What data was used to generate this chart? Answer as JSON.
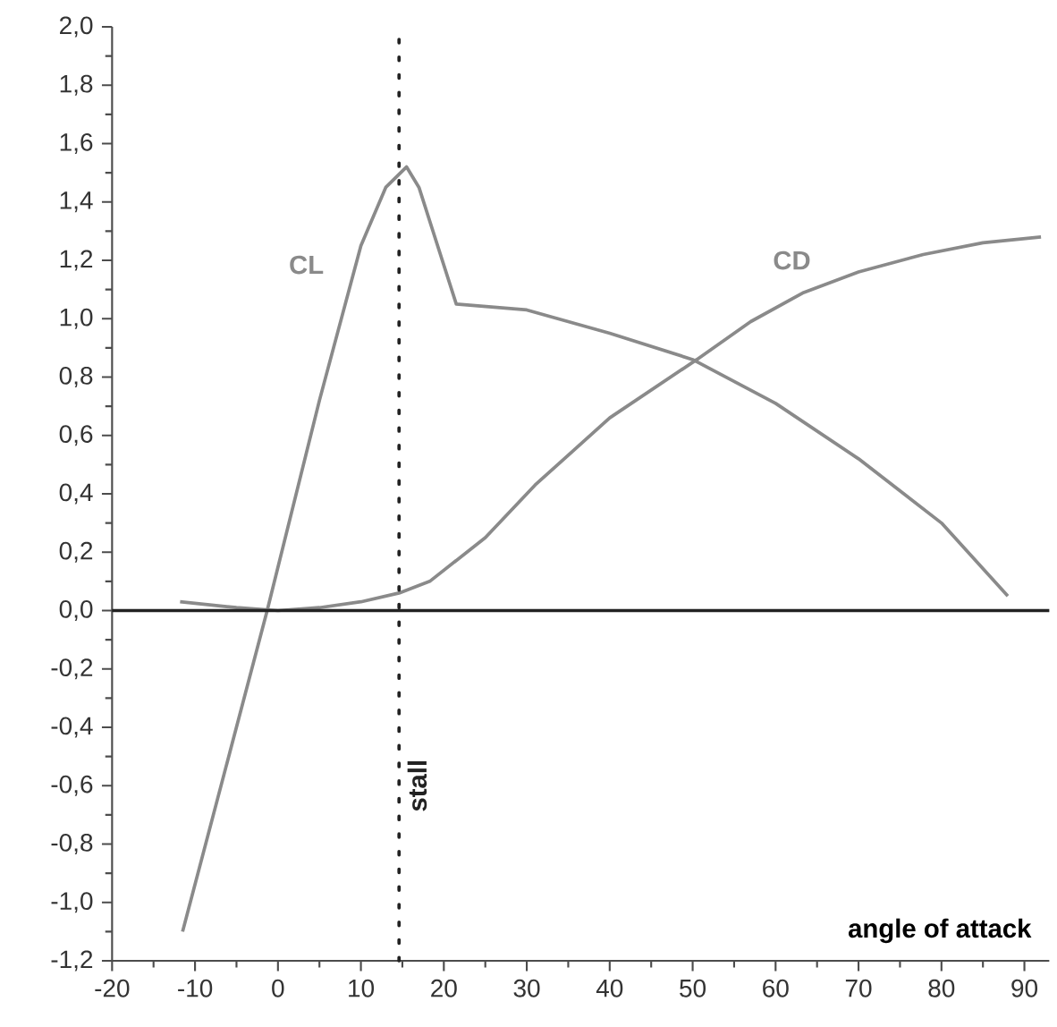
{
  "chart_data": {
    "type": "line",
    "xlabel": "angle of attack",
    "xlim": [
      -20,
      93
    ],
    "xticks": [
      -20,
      -10,
      0,
      10,
      20,
      30,
      40,
      50,
      60,
      70,
      80,
      90
    ],
    "ylim": [
      -1.2,
      2.0
    ],
    "yticks": [
      {
        "value": -1.2,
        "label": "-1,2"
      },
      {
        "value": -1.0,
        "label": "-1,0"
      },
      {
        "value": -0.8,
        "label": "-0,8"
      },
      {
        "value": -0.6,
        "label": "-0,6"
      },
      {
        "value": -0.4,
        "label": "-0,4"
      },
      {
        "value": -0.2,
        "label": "-0,2"
      },
      {
        "value": 0,
        "label": "0,0"
      },
      {
        "value": 0.2,
        "label": "0,2"
      },
      {
        "value": 0.4,
        "label": "0,4"
      },
      {
        "value": 0.6,
        "label": "0,6"
      },
      {
        "value": 0.8,
        "label": "0,8"
      },
      {
        "value": 1.0,
        "label": "1,0"
      },
      {
        "value": 1.2,
        "label": "1,2"
      },
      {
        "value": 1.4,
        "label": "1,4"
      },
      {
        "value": 1.6,
        "label": "1,6"
      },
      {
        "value": 1.8,
        "label": "1,8"
      },
      {
        "value": 2.0,
        "label": "2,0"
      }
    ],
    "grid": false,
    "marker": "none",
    "line_style": "solid",
    "series": [
      {
        "name": "CL",
        "color": "#8a8a8a",
        "x": [
          -11.5,
          -1.3,
          5,
          10,
          13,
          15.5,
          17,
          21.5,
          30,
          40,
          50,
          60,
          70,
          80,
          88
        ],
        "values": [
          -1.1,
          0,
          0.72,
          1.25,
          1.45,
          1.52,
          1.45,
          1.05,
          1.03,
          0.95,
          0.86,
          0.71,
          0.52,
          0.3,
          0.05
        ]
      },
      {
        "name": "CD",
        "color": "#8a8a8a",
        "x": [
          -11.8,
          -5,
          0,
          5,
          10,
          14.6,
          18.3,
          25,
          31,
          40,
          50.5,
          57,
          63.4,
          70,
          77.8,
          85,
          92
        ],
        "values": [
          0.03,
          0.01,
          0,
          0.01,
          0.03,
          0.06,
          0.1,
          0.25,
          0.43,
          0.66,
          0.86,
          0.99,
          1.09,
          1.16,
          1.22,
          1.26,
          1.28
        ]
      }
    ],
    "ref_lines": [
      {
        "axis": "x",
        "value": 14.6,
        "label": "stall",
        "color": "#222222",
        "line_style": "dotted"
      },
      {
        "axis": "y",
        "value": 0,
        "label": null,
        "color": "#222222",
        "line_style": "solid"
      }
    ]
  }
}
